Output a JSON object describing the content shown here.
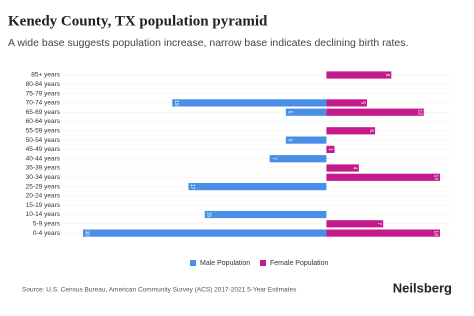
{
  "chart_data": {
    "type": "pyramid",
    "title": "Kenedy County, TX population pyramid",
    "subtitle": "A wide base suggests population increase, narrow base indicates declining birth rates.",
    "categories": [
      "85+ years",
      "80-84 years",
      "75-79 years",
      "70-74 years",
      "65-69 years",
      "60-64 years",
      "55-59 years",
      "50-54 years",
      "45-49 years",
      "40-44 years",
      "35-39 years",
      "30-34 years",
      "25-29 years",
      "20-24 years",
      "15-19 years",
      "10-14 years",
      "5-9 years",
      "0-4 years"
    ],
    "series": [
      {
        "name": "Male Population",
        "color": "#4a8fe7",
        "values": [
          0,
          0,
          0,
          19,
          5,
          0,
          0,
          5,
          0,
          7,
          0,
          0,
          17,
          0,
          0,
          15,
          0,
          30
        ]
      },
      {
        "name": "Female Population",
        "color": "#c41a8c",
        "values": [
          8,
          0,
          0,
          5,
          12,
          0,
          6,
          0,
          1,
          0,
          4,
          14,
          0,
          0,
          0,
          0,
          7,
          14
        ]
      }
    ],
    "grid": true,
    "source": "Source: U.S. Census Bureau, American Community Survey (ACS) 2017-2021 5-Year Estimates",
    "brand": "Neilsberg"
  }
}
